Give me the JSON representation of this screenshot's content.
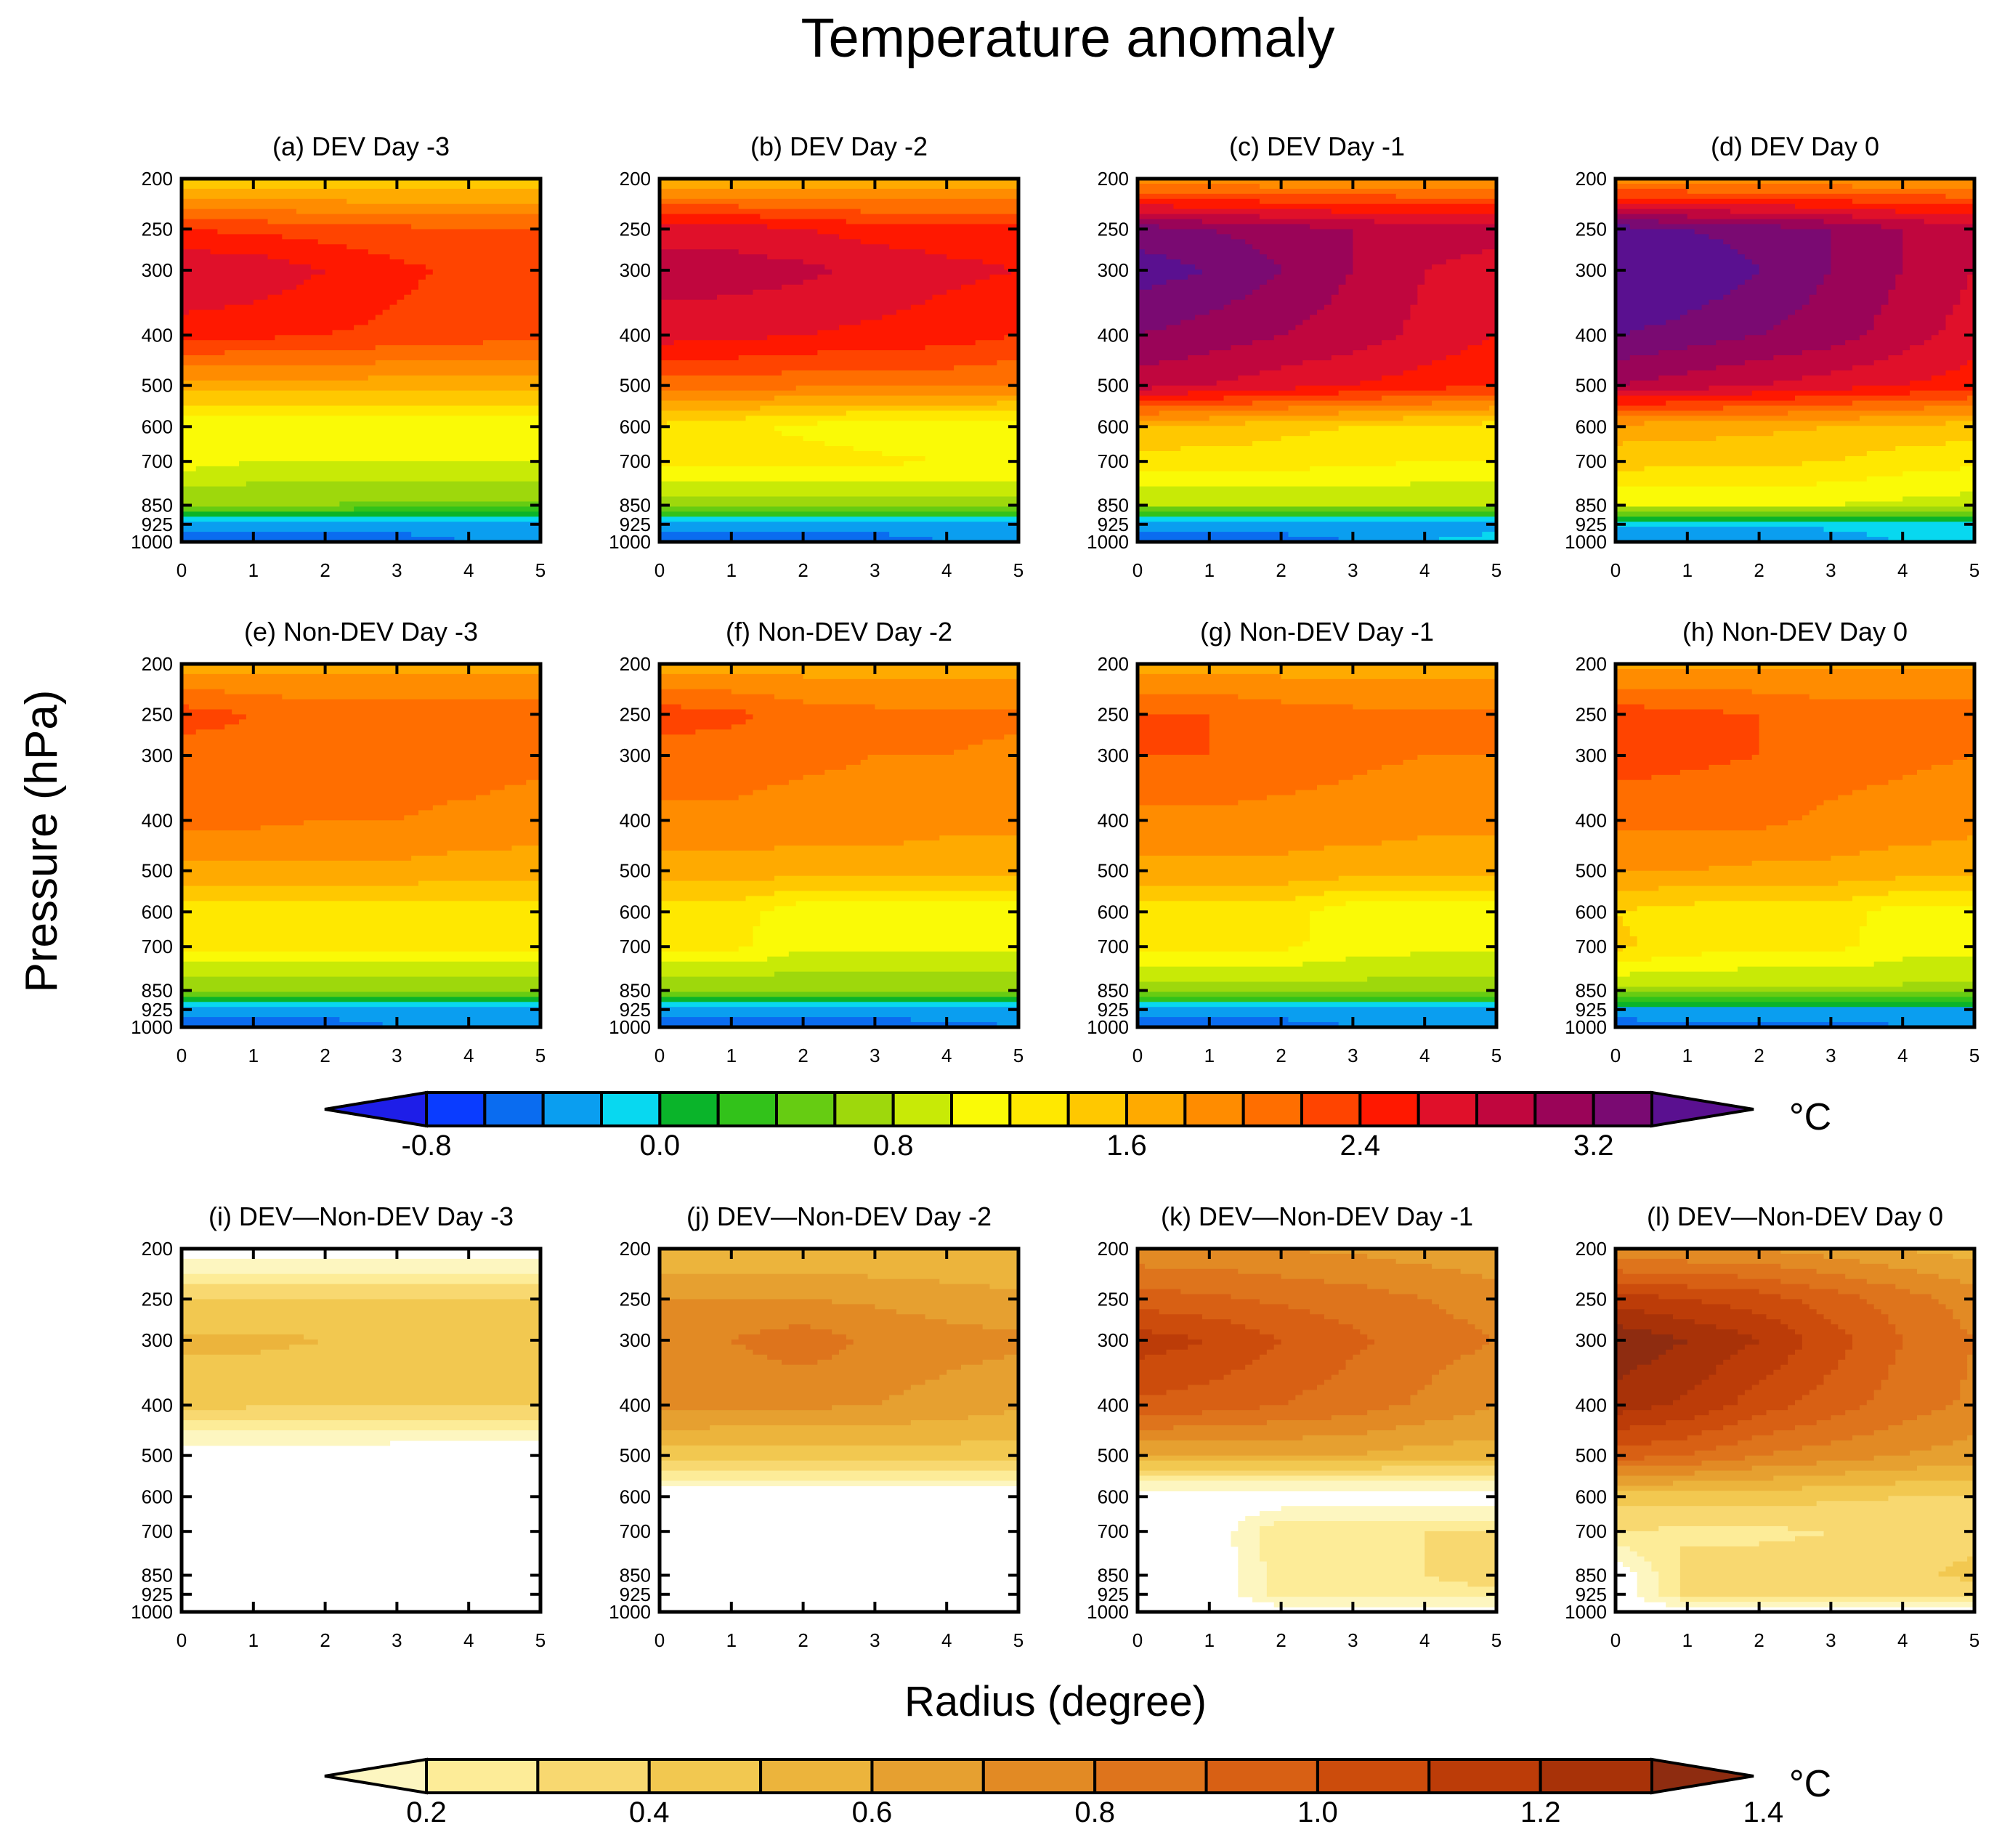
{
  "figure": {
    "title": "Temperature anomaly",
    "ylabel": "Pressure (hPa)",
    "xlabel": "Radius (degree)"
  },
  "chart_data": {
    "type": "heatmap",
    "x_ticks": [
      "0",
      "1",
      "2",
      "3",
      "4",
      "5"
    ],
    "x_range": [
      0,
      5
    ],
    "y_ticks": [
      "200",
      "250",
      "300",
      "400",
      "500",
      "600",
      "700",
      "850",
      "925",
      "1000"
    ],
    "y_range": [
      200,
      1000
    ],
    "y_scale": "log",
    "radii": [
      0,
      1,
      2,
      3,
      4,
      5
    ],
    "levels": [
      200,
      250,
      300,
      400,
      500,
      600,
      700,
      850,
      925,
      1000
    ],
    "colorbar_top": {
      "unit": "°C",
      "labels": [
        "-0.8",
        "0.0",
        "0.8",
        "1.6",
        "2.4",
        "3.2"
      ],
      "label_values": [
        -0.8,
        0.0,
        0.8,
        1.6,
        2.4,
        3.2
      ],
      "min": -0.8,
      "step": 0.2,
      "colors": [
        "#1e1ee8",
        "#0a3cff",
        "#0a6cf0",
        "#0a9ef0",
        "#08d8f0",
        "#0ab42a",
        "#32c21a",
        "#66cc12",
        "#9ed80c",
        "#c8ea06",
        "#fafa06",
        "#ffe800",
        "#ffc800",
        "#ffaa00",
        "#ff8c00",
        "#ff6e00",
        "#ff4400",
        "#ff1800",
        "#e0102a",
        "#c0063e",
        "#9a0458",
        "#7a0a72",
        "#5a1090"
      ]
    },
    "colorbar_bottom": {
      "unit": "°C",
      "labels": [
        "0.2",
        "0.4",
        "0.6",
        "0.8",
        "1.0",
        "1.2",
        "1.4"
      ],
      "label_values": [
        0.2,
        0.4,
        0.6,
        0.8,
        1.0,
        1.2,
        1.4
      ],
      "min": 0.2,
      "step": 0.1,
      "colors": [
        "#fdf6c0",
        "#fdec98",
        "#f8d870",
        "#f2c850",
        "#ecb43c",
        "#e6a030",
        "#e28a24",
        "#de741c",
        "#d86014",
        "#cc4c0c",
        "#bc3c08",
        "#a83208",
        "#8e2c10"
      ]
    },
    "panels": [
      {
        "title": "(a) DEV Day -3",
        "colorbar": "top",
        "values": [
          [
            1.4,
            1.4,
            1.4,
            1.4,
            1.4,
            1.4
          ],
          [
            2.4,
            2.35,
            2.3,
            2.25,
            2.2,
            2.2
          ],
          [
            2.8,
            2.75,
            2.6,
            2.45,
            2.35,
            2.3
          ],
          [
            2.5,
            2.45,
            2.4,
            2.35,
            2.3,
            2.25
          ],
          [
            1.7,
            1.7,
            1.7,
            1.7,
            1.7,
            1.7
          ],
          [
            1.05,
            1.05,
            1.05,
            1.05,
            1.05,
            1.05
          ],
          [
            1.1,
            1.0,
            1.0,
            1.0,
            1.0,
            1.0
          ],
          [
            0.6,
            0.6,
            0.6,
            0.55,
            0.55,
            0.55
          ],
          [
            -0.3,
            -0.3,
            -0.3,
            -0.3,
            -0.3,
            -0.3
          ],
          [
            -0.62,
            -0.6,
            -0.55,
            -0.5,
            -0.4,
            -0.4
          ]
        ]
      },
      {
        "title": "(b) DEV Day -2",
        "colorbar": "top",
        "values": [
          [
            1.6,
            1.6,
            1.6,
            1.6,
            1.6,
            1.6
          ],
          [
            2.7,
            2.7,
            2.6,
            2.5,
            2.5,
            2.5
          ],
          [
            2.9,
            2.9,
            2.85,
            2.75,
            2.65,
            2.6
          ],
          [
            2.7,
            2.65,
            2.6,
            2.55,
            2.5,
            2.4
          ],
          [
            2.1,
            2.1,
            2.05,
            2.05,
            2.05,
            2.0
          ],
          [
            1.35,
            1.25,
            1.15,
            1.05,
            1.05,
            1.05
          ],
          [
            1.3,
            1.3,
            1.3,
            1.25,
            1.2,
            1.2
          ],
          [
            0.7,
            0.7,
            0.7,
            0.7,
            0.7,
            0.7
          ],
          [
            -0.3,
            -0.3,
            -0.3,
            -0.3,
            -0.3,
            -0.3
          ],
          [
            -0.58,
            -0.56,
            -0.54,
            -0.5,
            -0.4,
            -0.4
          ]
        ]
      },
      {
        "title": "(c) DEV Day -1",
        "colorbar": "top",
        "values": [
          [
            1.8,
            1.8,
            1.8,
            1.8,
            1.8,
            1.8
          ],
          [
            3.3,
            3.2,
            3.1,
            3.0,
            2.9,
            2.9
          ],
          [
            3.5,
            3.4,
            3.2,
            3.0,
            2.8,
            2.7
          ],
          [
            3.2,
            3.1,
            3.0,
            2.9,
            2.75,
            2.6
          ],
          [
            2.9,
            2.8,
            2.7,
            2.6,
            2.5,
            2.4
          ],
          [
            1.6,
            1.55,
            1.45,
            1.4,
            1.35,
            1.3
          ],
          [
            1.3,
            1.3,
            1.3,
            1.25,
            1.2,
            1.2
          ],
          [
            0.8,
            0.8,
            0.8,
            0.8,
            0.8,
            0.8
          ],
          [
            -0.3,
            -0.3,
            -0.3,
            -0.3,
            -0.3,
            -0.3
          ],
          [
            -0.55,
            -0.52,
            -0.48,
            -0.4,
            -0.2,
            -0.1
          ]
        ]
      },
      {
        "title": "(d) DEV Day 0",
        "colorbar": "top",
        "values": [
          [
            1.8,
            1.8,
            1.8,
            1.8,
            1.8,
            1.8
          ],
          [
            3.5,
            3.4,
            3.3,
            3.2,
            3.0,
            2.9
          ],
          [
            3.8,
            3.6,
            3.4,
            3.2,
            3.0,
            2.8
          ],
          [
            3.4,
            3.3,
            3.2,
            3.1,
            2.9,
            2.7
          ],
          [
            3.0,
            2.9,
            2.8,
            2.7,
            2.6,
            2.5
          ],
          [
            1.7,
            1.7,
            1.65,
            1.6,
            1.55,
            1.5
          ],
          [
            1.5,
            1.45,
            1.45,
            1.4,
            1.3,
            1.25
          ],
          [
            1.0,
            1.0,
            1.0,
            1.0,
            0.95,
            0.9
          ],
          [
            -0.2,
            -0.2,
            -0.2,
            -0.15,
            -0.1,
            -0.1
          ],
          [
            -0.42,
            -0.4,
            -0.38,
            -0.3,
            -0.2,
            -0.15
          ]
        ]
      },
      {
        "title": "(e) Non-DEV Day -3",
        "colorbar": "top",
        "values": [
          [
            1.7,
            1.7,
            1.7,
            1.7,
            1.7,
            1.7
          ],
          [
            2.3,
            2.2,
            2.1,
            2.1,
            2.1,
            2.1
          ],
          [
            2.1,
            2.1,
            2.1,
            2.1,
            2.1,
            2.05
          ],
          [
            2.05,
            2.05,
            2.0,
            2.0,
            1.95,
            1.9
          ],
          [
            1.75,
            1.75,
            1.75,
            1.75,
            1.7,
            1.7
          ],
          [
            1.3,
            1.3,
            1.3,
            1.3,
            1.3,
            1.3
          ],
          [
            1.25,
            1.25,
            1.25,
            1.25,
            1.25,
            1.25
          ],
          [
            0.6,
            0.6,
            0.6,
            0.6,
            0.6,
            0.6
          ],
          [
            -0.3,
            -0.3,
            -0.3,
            -0.3,
            -0.3,
            -0.3
          ],
          [
            -0.55,
            -0.52,
            -0.5,
            -0.4,
            -0.4,
            -0.4
          ]
        ]
      },
      {
        "title": "(f) Non-DEV Day -2",
        "colorbar": "top",
        "values": [
          [
            1.7,
            1.7,
            1.7,
            1.7,
            1.7,
            1.7
          ],
          [
            2.3,
            2.25,
            2.1,
            2.05,
            2.05,
            2.05
          ],
          [
            2.1,
            2.1,
            2.05,
            2.0,
            2.0,
            1.95
          ],
          [
            1.95,
            1.95,
            1.9,
            1.9,
            1.85,
            1.85
          ],
          [
            1.7,
            1.7,
            1.7,
            1.7,
            1.7,
            1.7
          ],
          [
            1.3,
            1.3,
            1.05,
            1.05,
            1.05,
            1.05
          ],
          [
            1.25,
            1.25,
            1.05,
            1.05,
            1.05,
            1.05
          ],
          [
            0.6,
            0.6,
            0.6,
            0.6,
            0.6,
            0.6
          ],
          [
            -0.3,
            -0.3,
            -0.3,
            -0.3,
            -0.3,
            -0.3
          ],
          [
            -0.58,
            -0.56,
            -0.54,
            -0.5,
            -0.45,
            -0.4
          ]
        ]
      },
      {
        "title": "(g) Non-DEV Day -1",
        "colorbar": "top",
        "values": [
          [
            1.7,
            1.7,
            1.7,
            1.7,
            1.7,
            1.7
          ],
          [
            2.2,
            2.2,
            2.1,
            2.05,
            2.05,
            2.05
          ],
          [
            2.2,
            2.2,
            2.15,
            2.05,
            2.0,
            2.0
          ],
          [
            1.95,
            1.95,
            1.9,
            1.9,
            1.85,
            1.85
          ],
          [
            1.75,
            1.75,
            1.75,
            1.7,
            1.7,
            1.7
          ],
          [
            1.3,
            1.3,
            1.3,
            1.05,
            1.05,
            1.05
          ],
          [
            1.25,
            1.25,
            1.25,
            1.1,
            1.05,
            1.05
          ],
          [
            0.7,
            0.7,
            0.7,
            0.7,
            0.7,
            0.7
          ],
          [
            -0.3,
            -0.3,
            -0.3,
            -0.3,
            -0.3,
            -0.3
          ],
          [
            -0.55,
            -0.52,
            -0.48,
            -0.4,
            -0.4,
            -0.4
          ]
        ]
      },
      {
        "title": "(h) Non-DEV Day 0",
        "colorbar": "top",
        "values": [
          [
            1.75,
            1.75,
            1.75,
            1.75,
            1.75,
            1.75
          ],
          [
            2.3,
            2.25,
            2.2,
            2.1,
            2.1,
            2.1
          ],
          [
            2.3,
            2.25,
            2.2,
            2.1,
            2.05,
            2.0
          ],
          [
            2.05,
            2.05,
            2.05,
            1.95,
            1.9,
            1.85
          ],
          [
            1.8,
            1.8,
            1.75,
            1.75,
            1.7,
            1.7
          ],
          [
            1.4,
            1.3,
            1.3,
            1.3,
            1.1,
            1.1
          ],
          [
            1.45,
            1.3,
            1.25,
            1.25,
            1.1,
            1.05
          ],
          [
            0.75,
            0.75,
            0.75,
            0.75,
            0.75,
            0.75
          ],
          [
            -0.25,
            -0.25,
            -0.25,
            -0.25,
            -0.25,
            -0.25
          ],
          [
            -0.52,
            -0.5,
            -0.45,
            -0.45,
            -0.42,
            -0.4
          ]
        ]
      },
      {
        "title": "(i) DEV—Non-DEV  Day -3",
        "colorbar": "bottom",
        "values": [
          [
            0.0,
            0.0,
            0.0,
            0.0,
            0.0,
            0.0
          ],
          [
            0.42,
            0.42,
            0.42,
            0.42,
            0.42,
            0.42
          ],
          [
            0.52,
            0.52,
            0.5,
            0.45,
            0.42,
            0.4
          ],
          [
            0.43,
            0.42,
            0.41,
            0.4,
            0.4,
            0.4
          ],
          [
            0.0,
            0.0,
            0.0,
            0.0,
            0.0,
            0.0
          ],
          [
            0.0,
            0.0,
            0.0,
            0.0,
            0.0,
            0.0
          ],
          [
            0.0,
            0.0,
            0.0,
            0.0,
            0.0,
            0.0
          ],
          [
            0.0,
            0.0,
            0.0,
            0.0,
            0.0,
            0.0
          ],
          [
            0.0,
            0.0,
            0.0,
            0.0,
            0.0,
            0.0
          ],
          [
            0.0,
            0.0,
            0.0,
            0.0,
            0.0,
            0.0
          ]
        ]
      },
      {
        "title": "(j) DEV—Non-DEV  Day -2",
        "colorbar": "bottom",
        "values": [
          [
            0.5,
            0.5,
            0.5,
            0.5,
            0.5,
            0.5
          ],
          [
            0.7,
            0.7,
            0.7,
            0.68,
            0.65,
            0.62
          ],
          [
            0.78,
            0.8,
            0.86,
            0.78,
            0.74,
            0.72
          ],
          [
            0.73,
            0.72,
            0.72,
            0.7,
            0.66,
            0.62
          ],
          [
            0.45,
            0.45,
            0.45,
            0.45,
            0.45,
            0.45
          ],
          [
            0.0,
            0.0,
            0.0,
            0.0,
            0.0,
            0.0
          ],
          [
            0.0,
            0.0,
            0.0,
            0.0,
            0.0,
            0.0
          ],
          [
            0.0,
            0.0,
            0.0,
            0.0,
            0.0,
            0.0
          ],
          [
            0.0,
            0.0,
            0.0,
            0.0,
            0.0,
            0.0
          ],
          [
            0.0,
            0.0,
            0.0,
            0.0,
            0.0,
            0.0
          ]
        ]
      },
      {
        "title": "(k) DEV—Non-DEV  Day -1",
        "colorbar": "bottom",
        "values": [
          [
            0.72,
            0.72,
            0.7,
            0.68,
            0.65,
            0.62
          ],
          [
            0.95,
            0.92,
            0.88,
            0.85,
            0.8,
            0.75
          ],
          [
            1.15,
            1.1,
            1.0,
            0.92,
            0.85,
            0.8
          ],
          [
            0.98,
            0.95,
            0.9,
            0.85,
            0.78,
            0.7
          ],
          [
            0.6,
            0.6,
            0.6,
            0.6,
            0.55,
            0.55
          ],
          [
            0.0,
            0.0,
            0.0,
            0.0,
            0.0,
            0.0
          ],
          [
            0.0,
            0.0,
            0.3,
            0.3,
            0.3,
            0.3
          ],
          [
            0.0,
            0.0,
            0.25,
            0.25,
            0.3,
            0.35
          ],
          [
            0.0,
            0.0,
            0.25,
            0.25,
            0.25,
            0.28
          ],
          [
            0.0,
            0.0,
            0.0,
            0.0,
            0.0,
            0.0
          ]
        ]
      },
      {
        "title": "(l) DEV—Non-DEV  Day 0",
        "colorbar": "bottom",
        "values": [
          [
            0.7,
            0.7,
            0.7,
            0.65,
            0.6,
            0.55
          ],
          [
            1.15,
            1.1,
            1.05,
            0.95,
            0.85,
            0.75
          ],
          [
            1.38,
            1.3,
            1.2,
            1.05,
            0.9,
            0.8
          ],
          [
            1.25,
            1.18,
            1.05,
            0.95,
            0.85,
            0.78
          ],
          [
            0.95,
            0.9,
            0.8,
            0.75,
            0.7,
            0.65
          ],
          [
            0.45,
            0.45,
            0.45,
            0.42,
            0.4,
            0.4
          ],
          [
            0.3,
            0.28,
            0.28,
            0.3,
            0.35,
            0.38
          ],
          [
            0.0,
            0.35,
            0.35,
            0.35,
            0.38,
            0.42
          ],
          [
            0.0,
            0.32,
            0.32,
            0.32,
            0.32,
            0.35
          ],
          [
            0.0,
            0.0,
            0.0,
            0.0,
            0.0,
            0.0
          ]
        ]
      }
    ]
  }
}
